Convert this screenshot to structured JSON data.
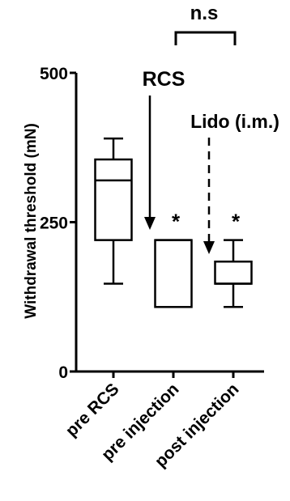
{
  "chart_data": {
    "type": "boxplot",
    "ylabel": "Withdrawal threshold (mN)",
    "ylim": [
      0,
      500
    ],
    "yticks": [
      0,
      250,
      500
    ],
    "categories": [
      "pre RCS",
      "pre injection",
      "post injection"
    ],
    "boxes": [
      {
        "name": "pre RCS",
        "min": 147,
        "q1": 220,
        "median": 320,
        "q3": 355,
        "max": 390,
        "sig": ""
      },
      {
        "name": "pre injection",
        "min": 108,
        "q1": 108,
        "median": 220,
        "q3": 220,
        "max": 220,
        "sig": "*"
      },
      {
        "name": "post injection",
        "min": 108,
        "q1": 147,
        "median": 147,
        "q3": 184,
        "max": 220,
        "sig": "*"
      }
    ],
    "annotations": {
      "rcs_label": "RCS",
      "lido_label": "Lido (i.m.)",
      "ns_label": "n.s"
    },
    "grid": false,
    "legend": "none"
  }
}
